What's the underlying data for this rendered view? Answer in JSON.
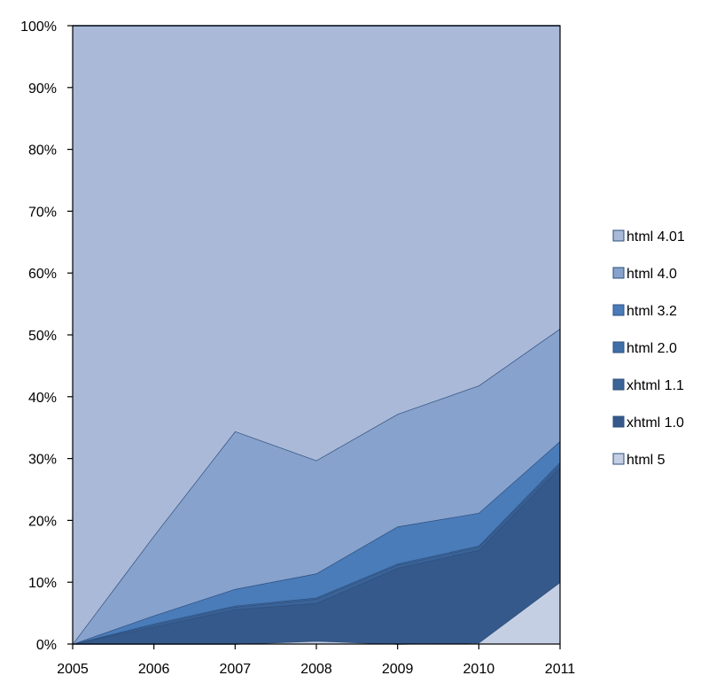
{
  "chart_data": {
    "type": "area",
    "stacked": true,
    "percent": true,
    "x": [
      2005,
      2006,
      2007,
      2008,
      2009,
      2010,
      2011
    ],
    "xticks": [
      "2005",
      "2006",
      "2007",
      "2008",
      "2009",
      "2010",
      "2011"
    ],
    "yticks": [
      "0%",
      "10%",
      "20%",
      "30%",
      "40%",
      "50%",
      "60%",
      "70%",
      "80%",
      "90%",
      "100%"
    ],
    "ylim": [
      0,
      100
    ],
    "legend_position": "right",
    "series": [
      {
        "name": "html 5",
        "color": "#c5cfe3",
        "values": [
          0,
          0,
          0,
          0.5,
          0,
          0.2,
          10
        ]
      },
      {
        "name": "xhtml 1.0",
        "color": "#34598a",
        "values": [
          0,
          2.8,
          5.6,
          6.1,
          12.3,
          15,
          18.6
        ]
      },
      {
        "name": "xhtml 1.1",
        "color": "#3a6398",
        "values": [
          0,
          0.3,
          0.4,
          0.7,
          0.5,
          0.5,
          0.5
        ]
      },
      {
        "name": "html 2.0",
        "color": "#406fa8",
        "values": [
          0,
          0.2,
          0.2,
          0.2,
          0.2,
          0.2,
          0.3
        ]
      },
      {
        "name": "html 3.2",
        "color": "#4a7cba",
        "values": [
          0,
          1.3,
          2.7,
          3.9,
          6,
          5.3,
          3.4
        ]
      },
      {
        "name": "html 4.0",
        "color": "#87a2cd",
        "values": [
          0,
          12.9,
          25.5,
          18.3,
          18.2,
          20.6,
          18.2
        ]
      },
      {
        "name": "html 4.01",
        "color": "#aab9d8",
        "values": [
          100,
          82.5,
          65.6,
          70.3,
          62.8,
          58.2,
          49
        ]
      }
    ],
    "legend_order": [
      "html 4.01",
      "html 4.0",
      "html 3.2",
      "html 2.0",
      "xhtml 1.1",
      "xhtml 1.0",
      "html 5"
    ]
  }
}
